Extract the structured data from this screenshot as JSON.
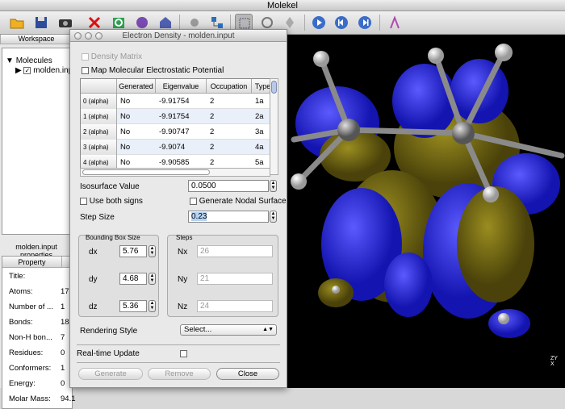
{
  "window": {
    "title": "Molekel"
  },
  "toolbar": {
    "icons": [
      "folder-icon",
      "save-icon",
      "camera-icon",
      "delete-icon",
      "refresh-icon",
      "orbital-icon",
      "surface-icon",
      "atom-icon",
      "grid-icon",
      "selection-icon",
      "zoom-icon",
      "color-icon",
      "play-icon",
      "step-back-icon",
      "step-forward-icon",
      "bond-tool-icon"
    ]
  },
  "left": {
    "tab_workspace": "Workspace",
    "tree_root": "Molecules",
    "tree_child": "molden.input",
    "file_label": "molden.input properties",
    "props_header": "Property",
    "props": [
      {
        "k": "Title:",
        "v": ""
      },
      {
        "k": "Atoms:",
        "v": "17"
      },
      {
        "k": "Number of ...",
        "v": "1"
      },
      {
        "k": "Bonds:",
        "v": "18"
      },
      {
        "k": "Non-H bon...",
        "v": "7"
      },
      {
        "k": "Residues:",
        "v": "0"
      },
      {
        "k": "Conformers:",
        "v": "1"
      },
      {
        "k": "Energy:",
        "v": "0"
      },
      {
        "k": "Molar Mass:",
        "v": "94.1"
      }
    ]
  },
  "dialog": {
    "title": "Electron Density - molden.input",
    "density_matrix": "Density Matrix",
    "map_mep": "Map Molecular Electrostatic Potential",
    "columns": [
      "Generated",
      "Eigenvalue",
      "Occupation",
      "Type"
    ],
    "rows": [
      {
        "h": "0 (alpha)",
        "gen": "No",
        "eig": "-9.91754",
        "occ": "2",
        "type": "1a"
      },
      {
        "h": "1 (alpha)",
        "gen": "No",
        "eig": "-9.91754",
        "occ": "2",
        "type": "2a"
      },
      {
        "h": "2 (alpha)",
        "gen": "No",
        "eig": "-9.90747",
        "occ": "2",
        "type": "3a"
      },
      {
        "h": "3 (alpha)",
        "gen": "No",
        "eig": "-9.9074",
        "occ": "2",
        "type": "4a"
      },
      {
        "h": "4 (alpha)",
        "gen": "No",
        "eig": "-9.90585",
        "occ": "2",
        "type": "5a"
      }
    ],
    "isosurface_label": "Isosurface Value",
    "isosurface_value": "0.0500",
    "use_both_signs": "Use both signs",
    "generate_nodal": "Generate Nodal Surface",
    "step_label": "Step Size",
    "step_value": "0.23",
    "bbox_title": "Bounding Box Size",
    "steps_title": "Steps",
    "dx_label": "dx",
    "dx": "5.76",
    "dy_label": "dy",
    "dy": "4.68",
    "dz_label": "dz",
    "dz": "5.36",
    "nx_label": "Nx",
    "nx": "26",
    "ny_label": "Ny",
    "ny": "21",
    "nz_label": "Nz",
    "nz": "24",
    "rendering_label": "Rendering Style",
    "rendering_value": "Select...",
    "realtime_label": "Real-time Update",
    "generate_btn": "Generate",
    "remove_btn": "Remove",
    "close_btn": "Close"
  },
  "viewer": {
    "axes_z": "Z",
    "axes_y": "Y",
    "axes_x": "X"
  },
  "colors": {
    "lobe_blue": "#2222d0",
    "lobe_olive": "#6b6210",
    "atom_gray": "#8a8a8a"
  }
}
